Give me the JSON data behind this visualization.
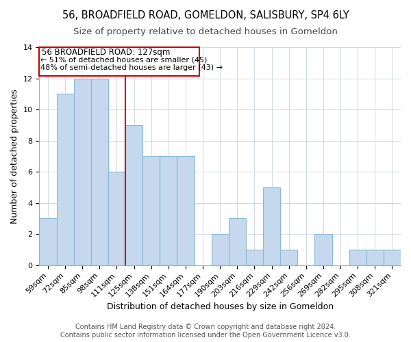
{
  "title": "56, BROADFIELD ROAD, GOMELDON, SALISBURY, SP4 6LY",
  "subtitle": "Size of property relative to detached houses in Gomeldon",
  "xlabel": "Distribution of detached houses by size in Gomeldon",
  "ylabel": "Number of detached properties",
  "bin_labels": [
    "59sqm",
    "72sqm",
    "85sqm",
    "98sqm",
    "111sqm",
    "125sqm",
    "138sqm",
    "151sqm",
    "164sqm",
    "177sqm",
    "190sqm",
    "203sqm",
    "216sqm",
    "229sqm",
    "242sqm",
    "256sqm",
    "269sqm",
    "282sqm",
    "295sqm",
    "308sqm",
    "321sqm"
  ],
  "bar_heights": [
    3,
    11,
    12,
    12,
    6,
    9,
    7,
    7,
    7,
    0,
    2,
    3,
    1,
    5,
    1,
    0,
    2,
    0,
    1,
    1,
    1
  ],
  "bar_color": "#c5d8ed",
  "bar_edge_color": "#89b8d9",
  "reference_line_color": "#cc0000",
  "reference_line_index": 5,
  "annotation_title": "56 BROADFIELD ROAD: 127sqm",
  "annotation_line1": "← 51% of detached houses are smaller (45)",
  "annotation_line2": "48% of semi-detached houses are larger (43) →",
  "annotation_box_color": "#ffffff",
  "annotation_box_edge_color": "#cc0000",
  "footer_line1": "Contains HM Land Registry data © Crown copyright and database right 2024.",
  "footer_line2": "Contains public sector information licensed under the Open Government Licence v3.0.",
  "ylim": [
    0,
    14
  ],
  "yticks": [
    0,
    2,
    4,
    6,
    8,
    10,
    12,
    14
  ],
  "title_fontsize": 10.5,
  "subtitle_fontsize": 9.5,
  "axis_label_fontsize": 9,
  "tick_fontsize": 8,
  "footer_fontsize": 7
}
